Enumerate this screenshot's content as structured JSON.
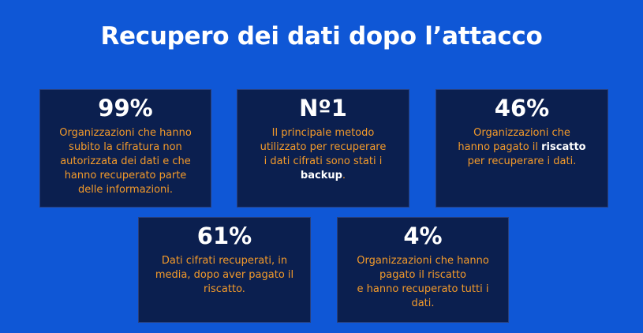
{
  "title": "Recupero dei dati dopo l’attacco",
  "cards": [
    {
      "value": "99%",
      "lines": [
        "Organizzazioni che hanno",
        "subito la cifratura non",
        "autorizzata dei dati e che",
        "hanno recuperato parte",
        "delle informazioni."
      ]
    },
    {
      "value": "Nº1",
      "lines": [
        "Il principale metodo",
        "utilizzato per recuperare",
        "i dati cifrati sono stati i"
      ],
      "bold": "backup",
      "tail": "."
    },
    {
      "value": "46%",
      "lines": [
        "Organizzazioni che"
      ],
      "line2_pre": "hanno pagato il ",
      "bold": "riscatto",
      "tail_line": "per recuperare i dati."
    },
    {
      "value": "61%",
      "lines": [
        "Dati cifrati recuperati, in",
        "media, dopo aver pagato il",
        "riscatto."
      ]
    },
    {
      "value": "4%",
      "lines": [
        "Organizzazioni che hanno",
        "pagato il riscatto",
        "e hanno recuperato tutti i",
        "dati."
      ]
    }
  ],
  "colors": {
    "background": "#0f57d6",
    "card": "#0b1f4f",
    "accent_text": "#f39a2a",
    "value_text": "#ffffff"
  }
}
